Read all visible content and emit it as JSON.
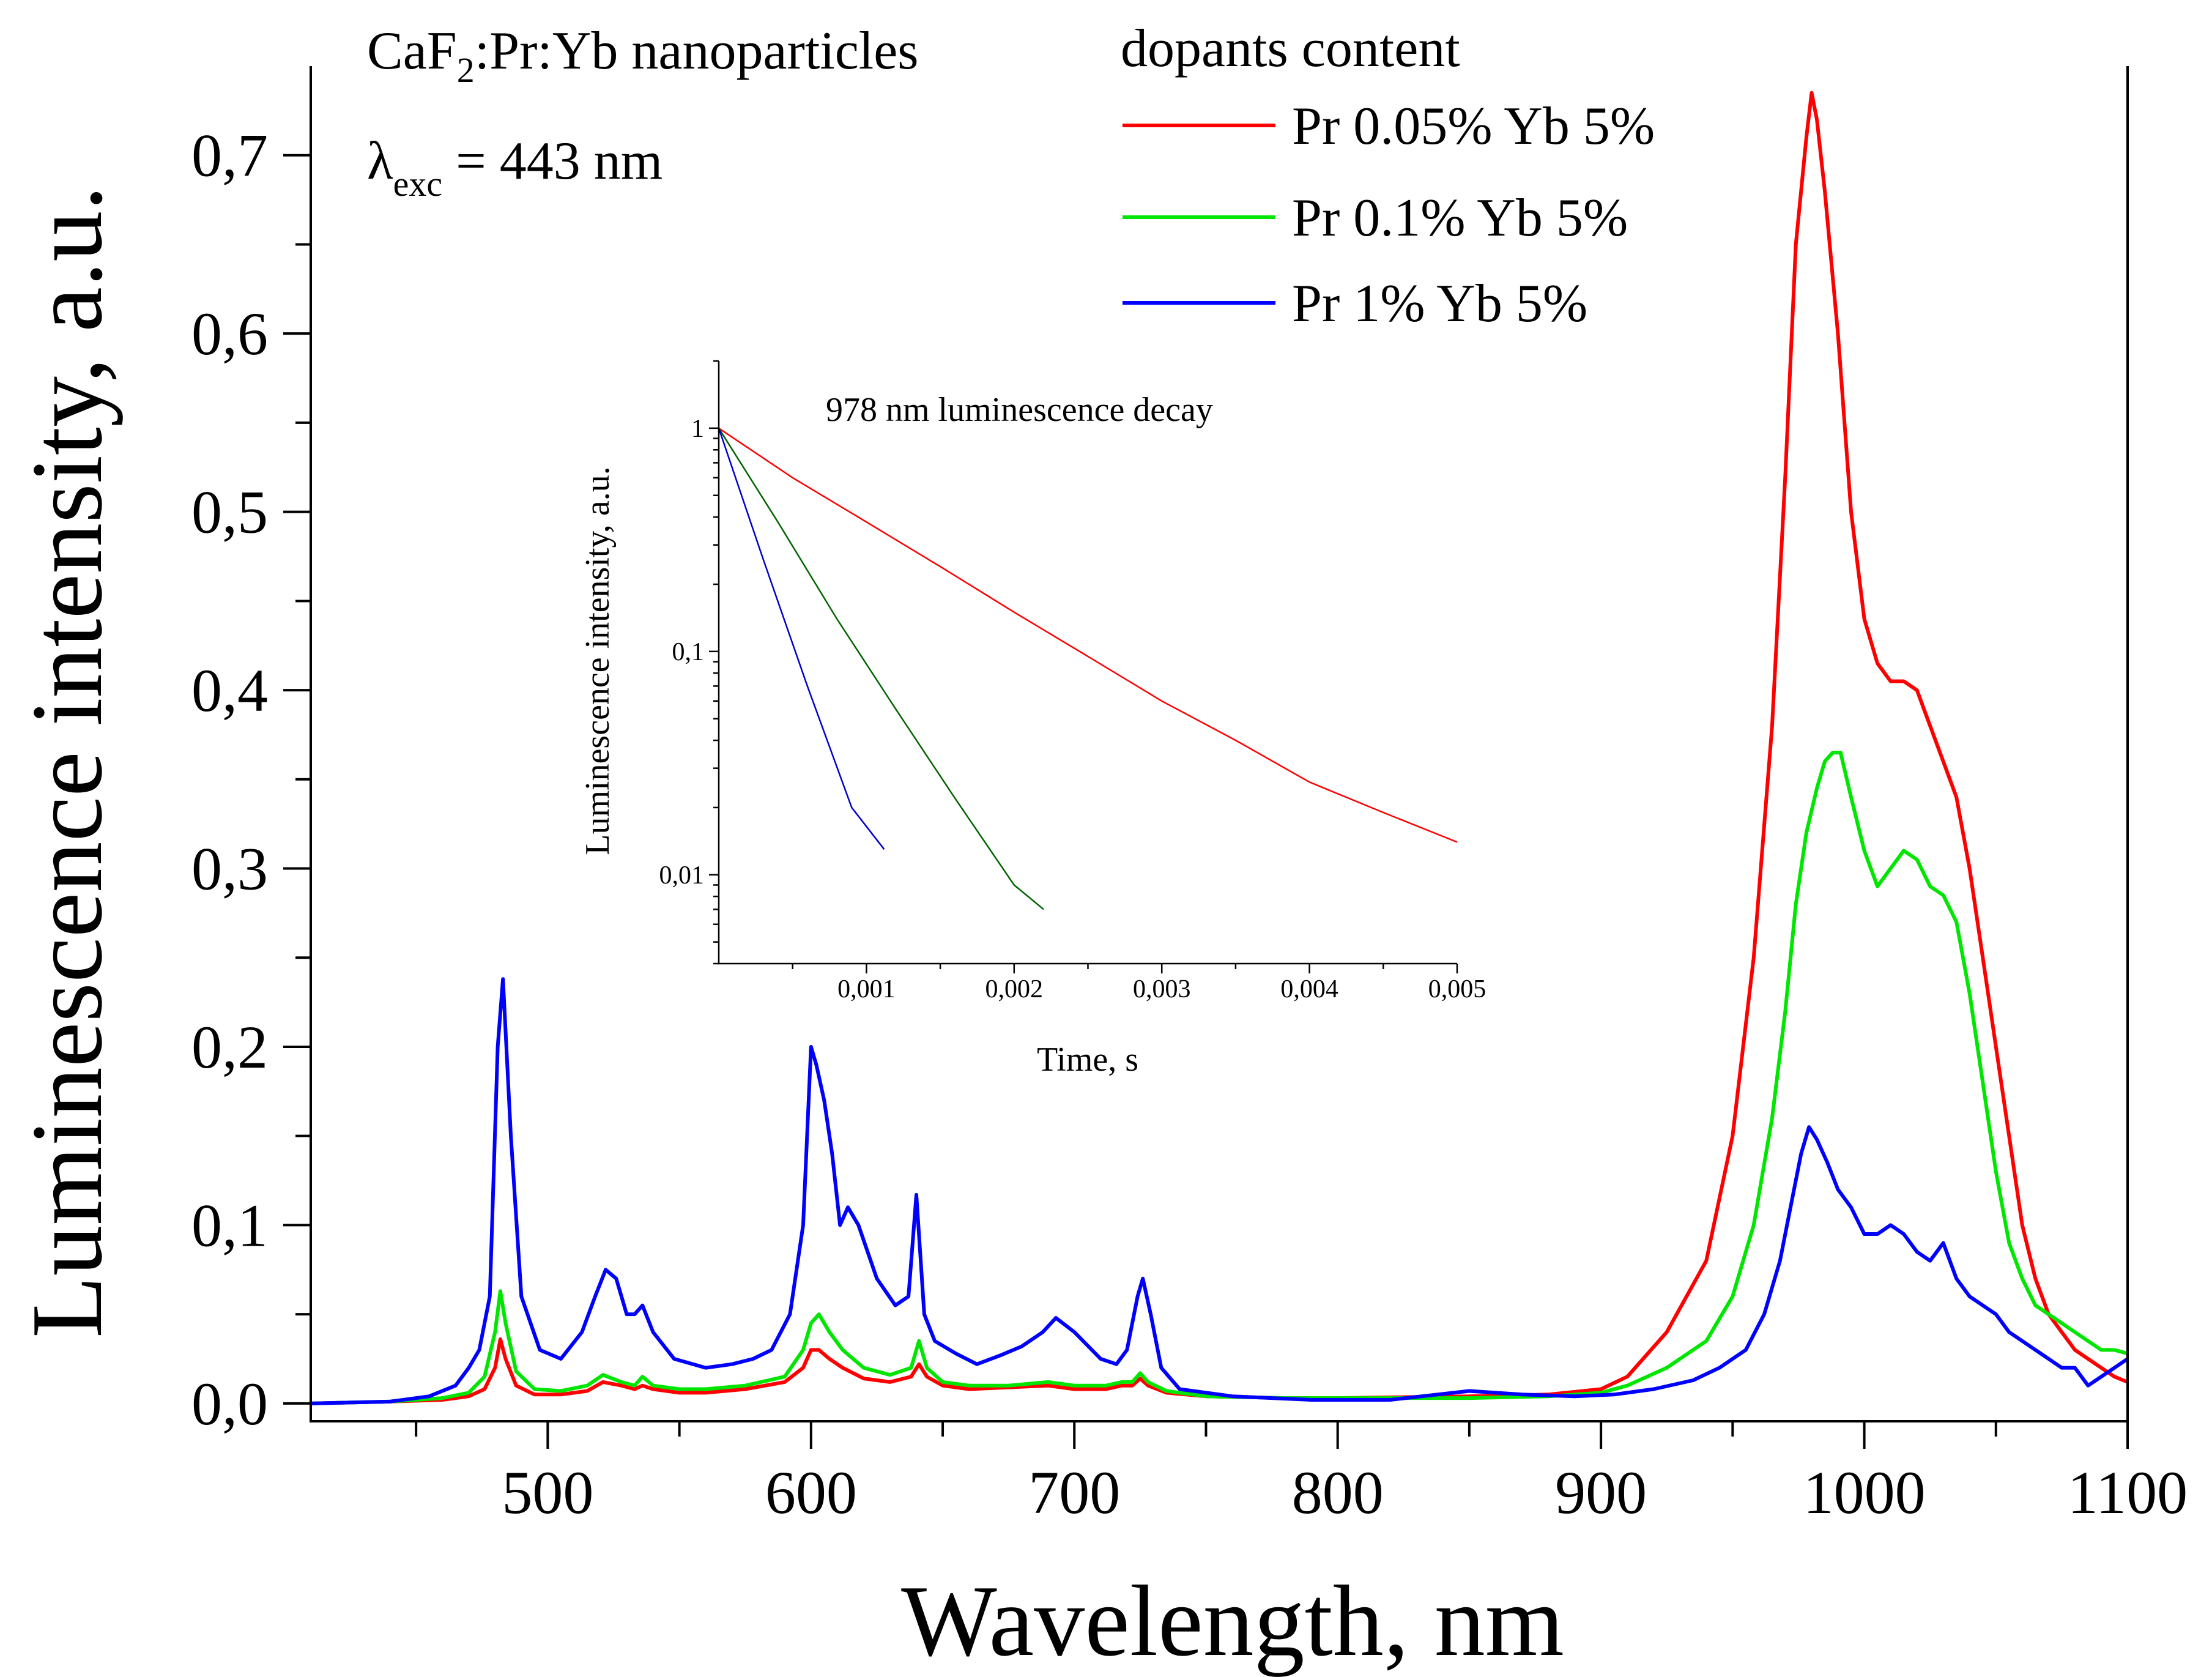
{
  "chart_data": [
    {
      "type": "line",
      "xlabel": "Wavelength, nm",
      "ylabel": "Luminescence intensity, a.u.",
      "xlim": [
        410,
        1100
      ],
      "ylim": [
        -0.01,
        0.75
      ],
      "x_ticks": [
        "500",
        "600",
        "700",
        "800",
        "900",
        "1000",
        "1100"
      ],
      "y_ticks": [
        "0,0",
        "0,1",
        "0,2",
        "0,3",
        "0,4",
        "0,5",
        "0,6",
        "0,7"
      ],
      "annotation_material_pre": "CaF",
      "annotation_material_sub": "2",
      "annotation_material_post": ":Pr:Yb nanoparticles",
      "annotation_exc_symbol": "λ",
      "annotation_exc_sub": "exc",
      "annotation_exc_value": " = 443 nm",
      "legend_title": "dopants content",
      "legend_placement": "top-right",
      "series": [
        {
          "name": "Pr 0.05% Yb 5%",
          "color": "#ff0000",
          "x": [
            410,
            440,
            460,
            470,
            476,
            480,
            482,
            484,
            488,
            495,
            505,
            515,
            521,
            528,
            533,
            536,
            540,
            550,
            560,
            575,
            590,
            597,
            600,
            603,
            607,
            612,
            620,
            630,
            638,
            641,
            644,
            650,
            660,
            675,
            690,
            700,
            712,
            718,
            722,
            725,
            728,
            735,
            750,
            780,
            800,
            850,
            880,
            900,
            910,
            925,
            940,
            950,
            958,
            965,
            970,
            974,
            978,
            980,
            982,
            985,
            990,
            995,
            1000,
            1005,
            1010,
            1015,
            1020,
            1025,
            1030,
            1035,
            1040,
            1045,
            1050,
            1055,
            1060,
            1065,
            1070,
            1075,
            1080,
            1085,
            1090,
            1095,
            1100
          ],
          "y": [
            0,
            0.001,
            0.002,
            0.004,
            0.008,
            0.02,
            0.036,
            0.025,
            0.01,
            0.005,
            0.005,
            0.007,
            0.012,
            0.01,
            0.008,
            0.01,
            0.008,
            0.006,
            0.006,
            0.008,
            0.012,
            0.02,
            0.03,
            0.03,
            0.025,
            0.02,
            0.014,
            0.012,
            0.015,
            0.022,
            0.015,
            0.01,
            0.008,
            0.009,
            0.01,
            0.008,
            0.008,
            0.01,
            0.01,
            0.014,
            0.01,
            0.006,
            0.004,
            0.003,
            0.003,
            0.004,
            0.005,
            0.008,
            0.015,
            0.04,
            0.08,
            0.15,
            0.25,
            0.38,
            0.52,
            0.65,
            0.71,
            0.735,
            0.72,
            0.68,
            0.6,
            0.5,
            0.44,
            0.415,
            0.405,
            0.405,
            0.4,
            0.38,
            0.36,
            0.34,
            0.3,
            0.25,
            0.2,
            0.15,
            0.1,
            0.07,
            0.05,
            0.04,
            0.03,
            0.025,
            0.02,
            0.015,
            0.012
          ]
        },
        {
          "name": "Pr 0.1% Yb 5%",
          "color": "#00e600",
          "x": [
            410,
            440,
            460,
            470,
            476,
            480,
            482,
            484,
            488,
            495,
            505,
            515,
            521,
            528,
            533,
            536,
            540,
            550,
            560,
            575,
            590,
            597,
            600,
            603,
            607,
            612,
            620,
            630,
            638,
            641,
            644,
            650,
            660,
            675,
            690,
            700,
            712,
            718,
            722,
            725,
            728,
            735,
            750,
            780,
            800,
            850,
            880,
            900,
            910,
            925,
            940,
            950,
            958,
            965,
            970,
            974,
            978,
            982,
            985,
            988,
            991,
            995,
            1000,
            1005,
            1010,
            1015,
            1020,
            1025,
            1030,
            1035,
            1040,
            1045,
            1050,
            1055,
            1060,
            1065,
            1070,
            1075,
            1080,
            1085,
            1090,
            1095,
            1100
          ],
          "y": [
            0,
            0.001,
            0.003,
            0.006,
            0.015,
            0.04,
            0.063,
            0.045,
            0.018,
            0.008,
            0.007,
            0.01,
            0.016,
            0.012,
            0.01,
            0.015,
            0.01,
            0.008,
            0.008,
            0.01,
            0.015,
            0.03,
            0.045,
            0.05,
            0.04,
            0.03,
            0.02,
            0.016,
            0.02,
            0.035,
            0.02,
            0.012,
            0.01,
            0.01,
            0.012,
            0.01,
            0.01,
            0.012,
            0.012,
            0.017,
            0.012,
            0.007,
            0.004,
            0.003,
            0.003,
            0.003,
            0.004,
            0.006,
            0.01,
            0.02,
            0.035,
            0.06,
            0.1,
            0.16,
            0.22,
            0.28,
            0.32,
            0.345,
            0.36,
            0.365,
            0.365,
            0.34,
            0.31,
            0.29,
            0.3,
            0.31,
            0.305,
            0.29,
            0.285,
            0.27,
            0.23,
            0.18,
            0.13,
            0.09,
            0.07,
            0.055,
            0.05,
            0.045,
            0.04,
            0.035,
            0.03,
            0.03,
            0.028
          ]
        },
        {
          "name": "Pr 1% Yb 5%",
          "color": "#0000ff",
          "x": [
            410,
            440,
            455,
            465,
            470,
            474,
            478,
            481,
            483,
            486,
            490,
            497,
            505,
            513,
            518,
            522,
            526,
            530,
            533,
            536,
            540,
            548,
            560,
            570,
            578,
            585,
            592,
            597,
            600,
            602,
            605,
            608,
            611,
            614,
            618,
            625,
            632,
            637,
            640,
            643,
            647,
            655,
            663,
            672,
            680,
            688,
            693,
            700,
            710,
            716,
            720,
            724,
            726,
            729,
            733,
            740,
            760,
            790,
            820,
            850,
            870,
            890,
            905,
            920,
            935,
            945,
            955,
            962,
            968,
            972,
            976,
            979,
            982,
            986,
            990,
            995,
            1000,
            1005,
            1010,
            1015,
            1020,
            1025,
            1030,
            1035,
            1040,
            1045,
            1050,
            1055,
            1060,
            1065,
            1070,
            1075,
            1080,
            1085,
            1090,
            1095,
            1100
          ],
          "y": [
            0,
            0.001,
            0.004,
            0.01,
            0.02,
            0.03,
            0.06,
            0.2,
            0.238,
            0.15,
            0.06,
            0.03,
            0.025,
            0.04,
            0.06,
            0.075,
            0.07,
            0.05,
            0.05,
            0.055,
            0.04,
            0.025,
            0.02,
            0.022,
            0.025,
            0.03,
            0.05,
            0.1,
            0.2,
            0.19,
            0.17,
            0.14,
            0.1,
            0.11,
            0.1,
            0.07,
            0.055,
            0.06,
            0.117,
            0.05,
            0.035,
            0.028,
            0.022,
            0.027,
            0.032,
            0.04,
            0.048,
            0.04,
            0.025,
            0.022,
            0.03,
            0.06,
            0.07,
            0.05,
            0.02,
            0.008,
            0.004,
            0.002,
            0.002,
            0.007,
            0.005,
            0.004,
            0.005,
            0.008,
            0.013,
            0.02,
            0.03,
            0.05,
            0.08,
            0.11,
            0.14,
            0.155,
            0.148,
            0.135,
            0.12,
            0.11,
            0.095,
            0.095,
            0.1,
            0.095,
            0.085,
            0.08,
            0.09,
            0.07,
            0.06,
            0.055,
            0.05,
            0.04,
            0.035,
            0.03,
            0.025,
            0.02,
            0.02,
            0.01,
            0.015,
            0.02,
            0.025
          ]
        }
      ]
    },
    {
      "type": "line",
      "title": "978 nm luminescence decay",
      "xlabel": "Time, s",
      "ylabel": "Luminescence intensity, a.u.",
      "xlim": [
        0,
        0.005
      ],
      "ylim": [
        0.004,
        2
      ],
      "yscale": "log",
      "x_ticks": [
        "0,001",
        "0,002",
        "0,003",
        "0,004",
        "0,005"
      ],
      "y_ticks": [
        "0,01",
        "0,1",
        "1"
      ],
      "series": [
        {
          "color": "#ff0000",
          "x": [
            0,
            0.0005,
            0.001,
            0.0015,
            0.002,
            0.0025,
            0.003,
            0.0035,
            0.004,
            0.0045,
            0.005
          ],
          "y": [
            1,
            0.6,
            0.38,
            0.24,
            0.15,
            0.095,
            0.06,
            0.04,
            0.026,
            0.019,
            0.014
          ]
        },
        {
          "color": "#006400",
          "x": [
            0,
            0.0004,
            0.0008,
            0.0012,
            0.0016,
            0.002,
            0.0022
          ],
          "y": [
            1,
            0.38,
            0.14,
            0.055,
            0.022,
            0.009,
            0.007
          ]
        },
        {
          "color": "#0000cd",
          "x": [
            0,
            0.0003,
            0.0006,
            0.0009,
            0.00112
          ],
          "y": [
            1,
            0.26,
            0.07,
            0.02,
            0.013
          ]
        }
      ]
    }
  ]
}
